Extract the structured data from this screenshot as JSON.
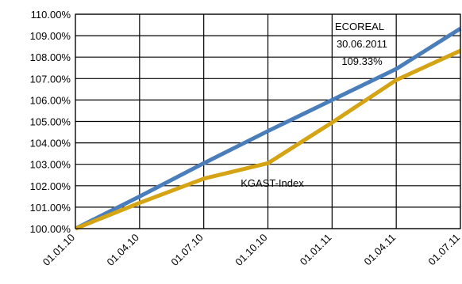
{
  "chart_data": {
    "type": "line",
    "categories": [
      "01.01.10",
      "01.04.10",
      "01.07.10",
      "01.10.10",
      "01.01.11",
      "01.04.11",
      "01.07.11"
    ],
    "ylim": [
      1.0,
      1.1
    ],
    "yticks": [
      1.0,
      1.01,
      1.02,
      1.03,
      1.04,
      1.05,
      1.06,
      1.07,
      1.08,
      1.09,
      1.1
    ],
    "ytick_labels": [
      "100.00%",
      "101.00%",
      "102.00%",
      "103.00%",
      "104.00%",
      "105.00%",
      "106.00%",
      "107.00%",
      "108.00%",
      "109.00%",
      "110.00%"
    ],
    "grid": true,
    "series": [
      {
        "name": "ECOREAL",
        "color": "#4a7ebb",
        "values": [
          1.0,
          1.015,
          1.0305,
          1.0455,
          1.06,
          1.0745,
          1.0933
        ]
      },
      {
        "name": "KGAST-Index",
        "color": "#d4a414",
        "values": [
          1.0,
          1.012,
          1.0233,
          1.0305,
          1.0495,
          1.0693,
          1.083
        ]
      }
    ],
    "annotations": [
      {
        "lines": [
          "ECOREAL",
          "30.06.2011",
          "109.33%"
        ]
      },
      {
        "lines": [
          "KGAST-Index"
        ]
      }
    ]
  }
}
